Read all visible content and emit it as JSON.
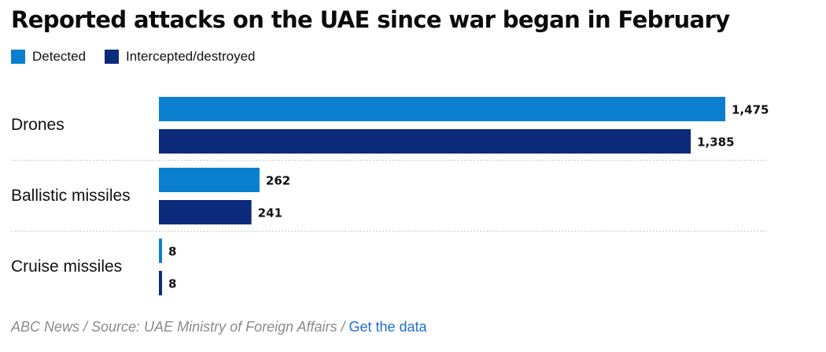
{
  "chart_data": {
    "type": "bar",
    "orientation": "horizontal",
    "title": "Reported attacks on the UAE since war began in February",
    "categories": [
      "Drones",
      "Ballistic missiles",
      "Cruise missiles"
    ],
    "series": [
      {
        "name": "Detected",
        "color": "#0a7fd0",
        "values": [
          1475,
          262,
          8
        ],
        "labels": [
          "1,475",
          "262",
          "8"
        ]
      },
      {
        "name": "Intercepted/destroyed",
        "color": "#0c2b7a",
        "values": [
          1385,
          241,
          8
        ],
        "labels": [
          "1,385",
          "241",
          "8"
        ]
      }
    ],
    "xlim": [
      0,
      1475
    ],
    "legend_position": "top-left",
    "grid": false,
    "separators": true
  },
  "footer": {
    "source": "ABC News / Source: UAE Ministry of Foreign Affairs /",
    "link": "Get the data"
  }
}
